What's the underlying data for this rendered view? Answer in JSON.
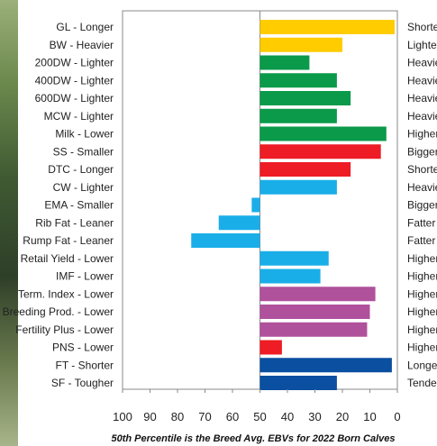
{
  "chart_data": {
    "type": "bar",
    "orientation": "horizontal",
    "categories": [
      "GL - Longer",
      "BW - Heavier",
      "200DW - Lighter",
      "400DW - Lighter",
      "600DW - Lighter",
      "MCW - Lighter",
      "Milk - Lower",
      "SS - Smaller",
      "DTC - Longer",
      "CW - Lighter",
      "EMA - Smaller",
      "Rib Fat - Leaner",
      "Rump Fat - Leaner",
      "Retail Yield - Lower",
      "IMF - Lower",
      "Term. Index - Lower",
      "Breeding Prod. - Lower",
      "Fertility Plus - Lower",
      "PNS - Lower",
      "FT - Shorter",
      "SF - Tougher"
    ],
    "right_labels": [
      "Shorter",
      "Lighter",
      "Heavier",
      "Heavier",
      "Heavier",
      "Heavier",
      "Higher",
      "Bigger",
      "Shorter",
      "Heavier",
      "Bigger",
      "Fatter",
      "Fatter",
      "Higher",
      "Higher",
      "Higher",
      "Higher",
      "Higher",
      "Higher",
      "Longer",
      "Tender"
    ],
    "values": [
      1,
      20,
      32,
      22,
      17,
      22,
      4,
      6,
      17,
      22,
      53,
      65,
      75,
      25,
      28,
      8,
      10,
      11,
      42,
      2,
      22
    ],
    "colors": [
      "#FFCC00",
      "#FFCC00",
      "#0A9A4A",
      "#0A9A4A",
      "#0A9A4A",
      "#0A9A4A",
      "#0A9A4A",
      "#EE1C25",
      "#EE1C25",
      "#1AAEE8",
      "#1AAEE8",
      "#1AAEE8",
      "#1AAEE8",
      "#1AAEE8",
      "#1AAEE8",
      "#B0519C",
      "#B0519C",
      "#B0519C",
      "#EE1C25",
      "#0A4FA0",
      "#0A4FA0"
    ],
    "x_ticks": [
      "100",
      "90",
      "80",
      "70",
      "60",
      "50",
      "40",
      "30",
      "20",
      "10",
      "0"
    ],
    "xlim": [
      100,
      0
    ],
    "reference_line": 50,
    "x_reversed": true,
    "grid": false,
    "caption": "50th Percentile is the Breed Avg. EBVs for 2022 Born Calves"
  }
}
